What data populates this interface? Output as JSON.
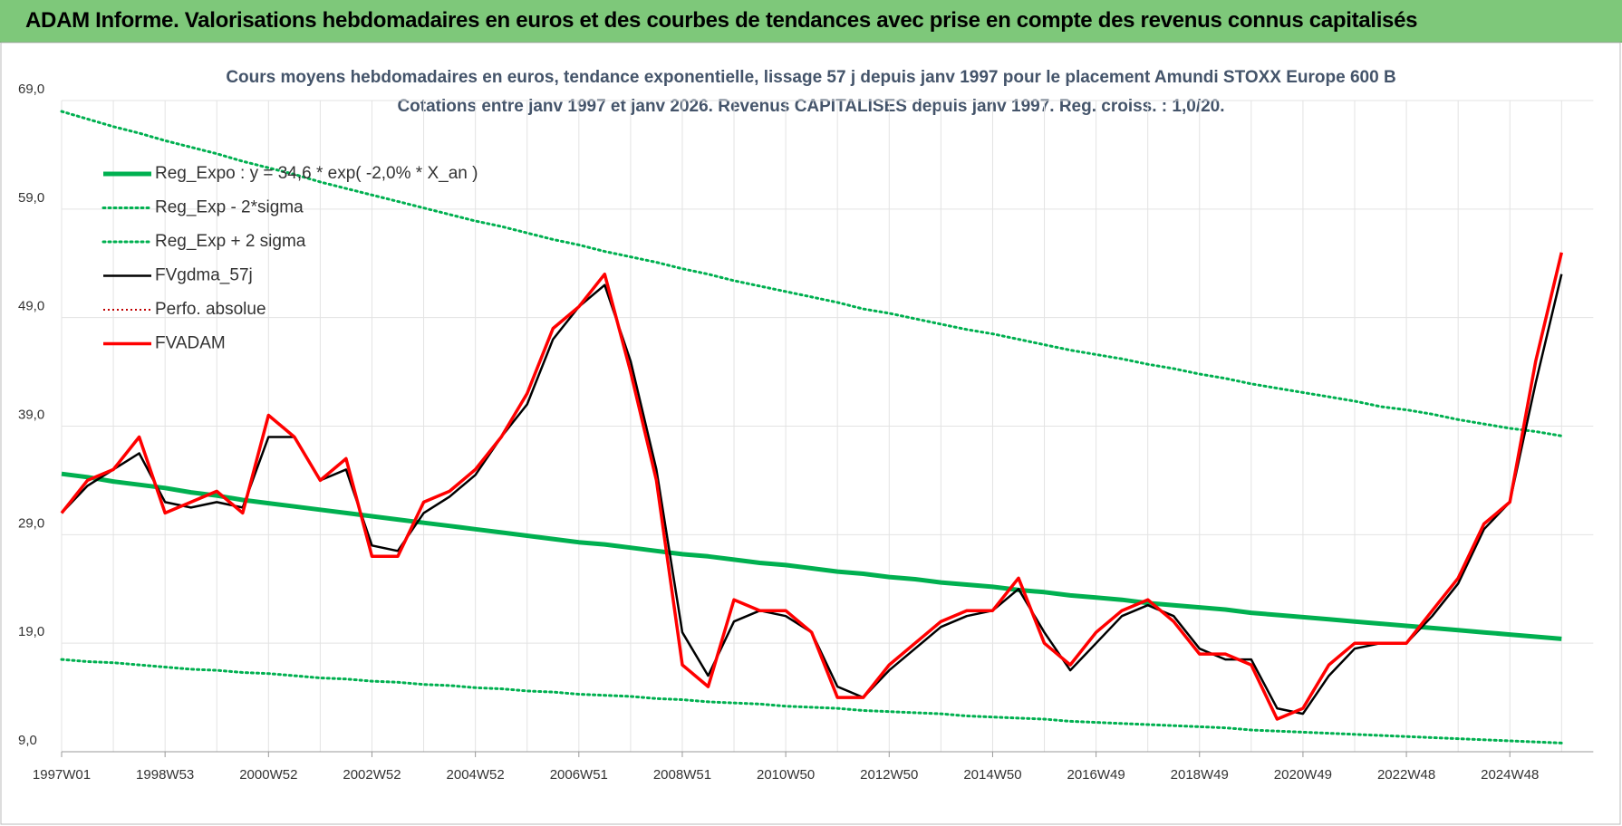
{
  "header": {
    "title": "ADAM Informe. Valorisations hebdomadaires en euros et des courbes de tendances avec prise en compte des revenus connus capitalisés"
  },
  "chart_data": {
    "type": "line",
    "title": "Cours moyens hebdomadaires en euros, tendance exponentielle, lissage 57 j depuis janv 1997 pour le placement Amundi STOXX Europe 600 B",
    "subtitle": "Cotations entre janv 1997 et janv 2026. Revenus CAPITALISES depuis janv 1997. Reg. croiss. : 1,0/20.",
    "categories": [
      "1997W01",
      null,
      null,
      null,
      "1998W53",
      null,
      null,
      null,
      "2000W52",
      null,
      null,
      null,
      "2002W52",
      null,
      null,
      null,
      "2004W52",
      null,
      null,
      null,
      "2006W51",
      null,
      null,
      null,
      "2008W51",
      null,
      null,
      null,
      "2010W50",
      null,
      null,
      null,
      "2012W50",
      null,
      null,
      null,
      "2014W50",
      null,
      null,
      null,
      "2016W49",
      null,
      null,
      null,
      "2018W49",
      null,
      null,
      null,
      "2020W49",
      null,
      null,
      null,
      "2022W48",
      null,
      null,
      null,
      "2024W48",
      null,
      null
    ],
    "ylim": [
      9,
      69
    ],
    "yticks": [
      {
        "value": 9,
        "label": "9,0"
      },
      {
        "value": 19,
        "label": "19,0"
      },
      {
        "value": 29,
        "label": "29,0"
      },
      {
        "value": 39,
        "label": "39,0"
      },
      {
        "value": 49,
        "label": "49,0"
      },
      {
        "value": 59,
        "label": "59,0"
      },
      {
        "value": 69,
        "label": "69,0"
      }
    ],
    "grid": true,
    "legend": "upper left",
    "series": [
      {
        "name": "Reg_Expo : y = 34,6 * exp( -2,0% *  X_an )",
        "color": "#00b050",
        "style": "thick",
        "values": [
          34.6,
          34.3,
          33.9,
          33.6,
          33.3,
          32.9,
          32.6,
          32.2,
          31.9,
          31.6,
          31.3,
          31.0,
          30.7,
          30.4,
          30.1,
          29.8,
          29.5,
          29.2,
          28.9,
          28.6,
          28.3,
          28.1,
          27.8,
          27.5,
          27.2,
          27.0,
          26.7,
          26.4,
          26.2,
          25.9,
          25.6,
          25.4,
          25.1,
          24.9,
          24.6,
          24.4,
          24.2,
          23.9,
          23.7,
          23.4,
          23.2,
          23.0,
          22.7,
          22.5,
          22.3,
          22.1,
          21.8,
          21.6,
          21.4,
          21.2,
          21.0,
          20.8,
          20.6,
          20.4,
          20.2,
          20.0,
          19.8,
          19.6,
          19.4
        ]
      },
      {
        "name": "Reg_Exp - 2*sigma",
        "color": "#00b050",
        "style": "dotted",
        "values": [
          17.5,
          17.3,
          17.2,
          17.0,
          16.8,
          16.6,
          16.5,
          16.3,
          16.2,
          16.0,
          15.8,
          15.7,
          15.5,
          15.4,
          15.2,
          15.1,
          14.9,
          14.8,
          14.6,
          14.5,
          14.3,
          14.2,
          14.1,
          13.9,
          13.8,
          13.6,
          13.5,
          13.4,
          13.2,
          13.1,
          13.0,
          12.8,
          12.7,
          12.6,
          12.5,
          12.3,
          12.2,
          12.1,
          12.0,
          11.8,
          11.7,
          11.6,
          11.5,
          11.4,
          11.3,
          11.2,
          11.0,
          10.9,
          10.8,
          10.7,
          10.6,
          10.5,
          10.4,
          10.3,
          10.2,
          10.1,
          10.0,
          9.9,
          9.8
        ]
      },
      {
        "name": "Reg_Exp + 2 sigma",
        "color": "#00b050",
        "style": "dotted",
        "values": [
          68,
          67.3,
          66.6,
          66.0,
          65.3,
          64.7,
          64.1,
          63.4,
          62.8,
          62.2,
          61.5,
          60.9,
          60.3,
          59.7,
          59.1,
          58.5,
          57.9,
          57.4,
          56.8,
          56.2,
          55.7,
          55.1,
          54.6,
          54.1,
          53.5,
          53.0,
          52.4,
          51.9,
          51.4,
          50.9,
          50.4,
          49.8,
          49.4,
          48.9,
          48.4,
          47.9,
          47.5,
          47.0,
          46.5,
          46.0,
          45.6,
          45.2,
          44.7,
          44.3,
          43.8,
          43.4,
          42.9,
          42.5,
          42.1,
          41.7,
          41.3,
          40.8,
          40.5,
          40.1,
          39.6,
          39.2,
          38.8,
          38.5,
          38.1
        ]
      },
      {
        "name": "FVgdma_57j",
        "color": "#000000",
        "style": "solid",
        "values": [
          31,
          33.5,
          35,
          36.5,
          32,
          31.5,
          32,
          31.5,
          38,
          38,
          34,
          35,
          28,
          27.5,
          31,
          32.5,
          34.5,
          38,
          41,
          47,
          50,
          52,
          45,
          35,
          20,
          16,
          21,
          22,
          21.5,
          20,
          15,
          14,
          16.5,
          18.5,
          20.5,
          21.5,
          22,
          24,
          20,
          16.5,
          19,
          21.5,
          22.5,
          21.5,
          18.5,
          17.5,
          17.5,
          13,
          12.5,
          16,
          18.5,
          19,
          19,
          21.5,
          24.5,
          29.5,
          32,
          43,
          53
        ]
      },
      {
        "name": "Perfo. absolue",
        "color": "#c00000",
        "style": "dotted-thin"
      },
      {
        "name": "FVADAM",
        "color": "#ff0000",
        "style": "red",
        "values": [
          31,
          34,
          35,
          38,
          31,
          32,
          33,
          31,
          40,
          38,
          34,
          36,
          27,
          27,
          32,
          33,
          35,
          38,
          42,
          48,
          50,
          53,
          44,
          34,
          17,
          15,
          23,
          22,
          22,
          20,
          14,
          14,
          17,
          19,
          21,
          22,
          22,
          25,
          19,
          17,
          20,
          22,
          23,
          21,
          18,
          18,
          17,
          12,
          13,
          17,
          19,
          19,
          19,
          22,
          25,
          30,
          32,
          45,
          55
        ]
      }
    ]
  }
}
